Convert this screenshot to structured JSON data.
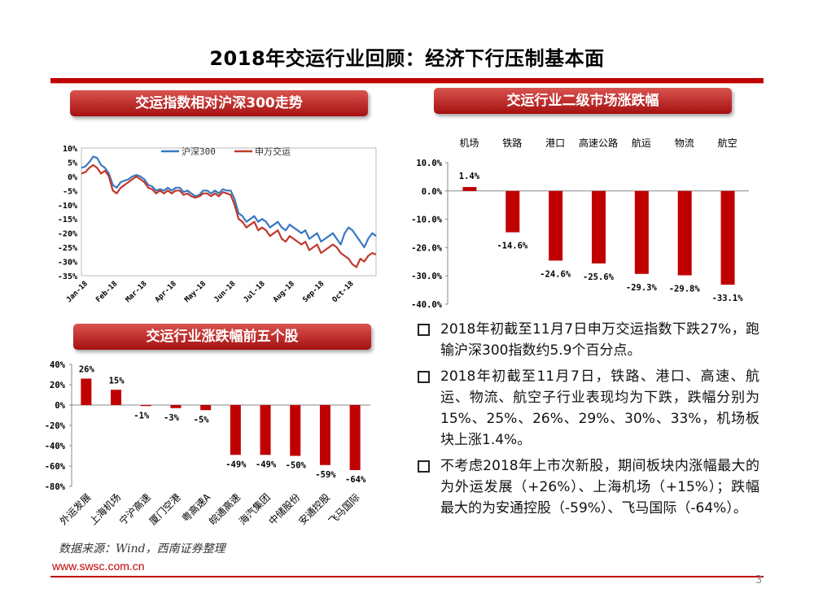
{
  "page": {
    "title": "2018年交运行业回顾：经济下行压制基本面",
    "source": "数据来源：Wind，西南证券整理",
    "url": "www.swsc.com.cn",
    "page_number": "3"
  },
  "sections": {
    "index_trend": "交运指数相对沪深300走势",
    "sector_change": "交运行业二级市场涨跌幅",
    "top5": "交运行业涨跌幅前五个股"
  },
  "bullets": [
    "2018年初截至11月7日申万交运指数下跌27%，跑输沪深300指数约5.9个百分点。",
    "2018年初截至11月7日，铁路、港口、高速、航运、物流、航空子行业表现均为下跌，跌幅分别为15%、25%、26%、29%、30%、33%，机场板块上涨1.4%。",
    "不考虑2018年上市次新股，期间板块内涨幅最大的为外运发展（+26%）、上海机场（+15%）；跌幅最大的为安通控股（-59%）、飞马国际（-64%）。"
  ],
  "colors": {
    "accent": "#c00000",
    "hs300": "#3a78c2",
    "sw": "#c0392b",
    "bar": "#c00000"
  },
  "chart_data": [
    {
      "type": "line",
      "title": "交运指数相对沪深300走势",
      "x_labels": [
        "Jan-18",
        "Feb-18",
        "Mar-18",
        "Apr-18",
        "May-18",
        "Jun-18",
        "Jul-18",
        "Aug-18",
        "Sep-18",
        "Oct-18"
      ],
      "y_ticks": [
        "10%",
        "5%",
        "0%",
        "-5%",
        "-10%",
        "-15%",
        "-20%",
        "-25%",
        "-30%",
        "-35%"
      ],
      "ylim": [
        -35,
        10
      ],
      "series": [
        {
          "name": "沪深300",
          "values": [
            3,
            3.5,
            5,
            7,
            6.5,
            4,
            3,
            1,
            -3,
            -4,
            -2,
            -1.5,
            -1,
            0,
            0.5,
            0,
            -1,
            -3,
            -3.5,
            -5,
            -4.5,
            -5,
            -4,
            -5,
            -4,
            -4,
            -5.5,
            -5,
            -6,
            -7,
            -6.5,
            -5,
            -5,
            -6,
            -5,
            -6,
            -4.5,
            -5,
            -5,
            -8,
            -13,
            -14,
            -16,
            -15,
            -14,
            -16,
            -15,
            -16,
            -18,
            -17,
            -16,
            -18,
            -19,
            -17,
            -18,
            -19,
            -20,
            -19,
            -22,
            -21,
            -20,
            -23,
            -22,
            -21,
            -20,
            -22,
            -24,
            -20,
            -18,
            -19,
            -21,
            -23,
            -25,
            -22,
            -20,
            -21
          ]
        },
        {
          "name": "申万交运",
          "values": [
            1,
            1.5,
            3,
            4,
            3,
            1,
            2,
            0,
            -5,
            -6,
            -4,
            -3,
            -2,
            -1,
            0,
            -1,
            -2,
            -4,
            -4.5,
            -6,
            -5,
            -6,
            -5,
            -6,
            -5,
            -5,
            -6.5,
            -6,
            -7,
            -7.5,
            -7,
            -6,
            -6,
            -7,
            -6,
            -7,
            -5.5,
            -6,
            -6.5,
            -10,
            -15,
            -16,
            -18,
            -17,
            -16,
            -19,
            -18,
            -19,
            -21,
            -20,
            -19,
            -22,
            -23,
            -21,
            -22,
            -23,
            -24,
            -23,
            -26,
            -25,
            -24,
            -27,
            -26,
            -25,
            -24,
            -25,
            -27,
            -28,
            -29,
            -31,
            -32,
            -29,
            -30,
            -28,
            -27,
            -27.5
          ]
        }
      ]
    },
    {
      "type": "bar",
      "title": "交运行业二级市场涨跌幅",
      "categories": [
        "机场",
        "铁路",
        "港口",
        "高速公路",
        "航运",
        "物流",
        "航空"
      ],
      "values": [
        1.4,
        -14.6,
        -24.6,
        -25.6,
        -29.3,
        -29.8,
        -33.1
      ],
      "value_labels": [
        "1.4%",
        "-14.6%",
        "-24.6%",
        "-25.6%",
        "-29.3%",
        "-29.8%",
        "-33.1%"
      ],
      "y_ticks": [
        "10.0%",
        "0.0%",
        "-10.0%",
        "-20.0%",
        "-30.0%",
        "-40.0%"
      ],
      "ylim": [
        -40,
        10
      ]
    },
    {
      "type": "bar",
      "title": "交运行业涨跌幅前五个股",
      "categories": [
        "外运发展",
        "上海机场",
        "宁沪高速",
        "厦门空港",
        "粤高速A",
        "皖通高速",
        "海汽集团",
        "中储股份",
        "安通控股",
        "飞马国际"
      ],
      "values": [
        26,
        15,
        -1,
        -3,
        -5,
        -49,
        -49,
        -50,
        -59,
        -64
      ],
      "value_labels": [
        "26%",
        "15%",
        "-1%",
        "-3%",
        "-5%",
        "-49%",
        "-49%",
        "-50%",
        "-59%",
        "-64%"
      ],
      "y_ticks": [
        "40%",
        "20%",
        "0%",
        "-20%",
        "-40%",
        "-60%",
        "-80%"
      ],
      "ylim": [
        -80,
        40
      ]
    }
  ]
}
